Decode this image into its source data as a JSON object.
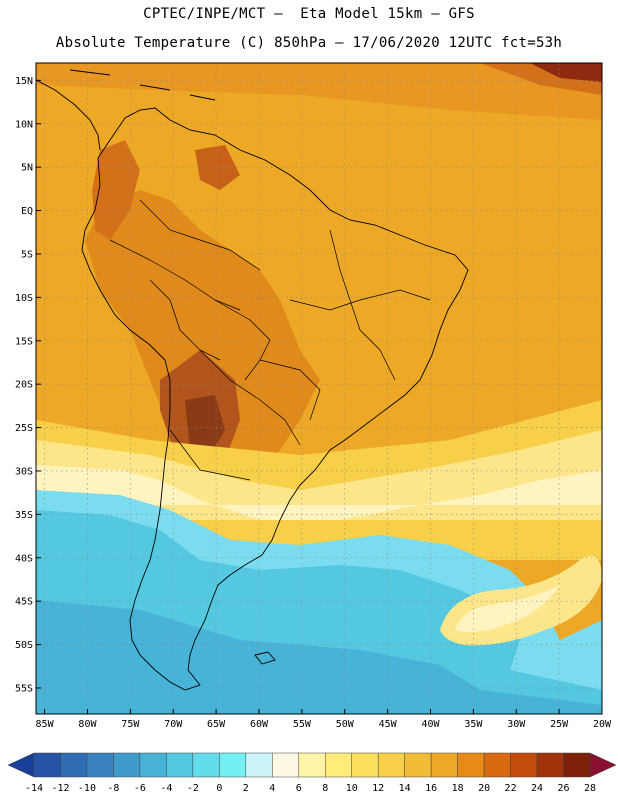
{
  "header": {
    "line1": "CPTEC/INPE/MCT –  Eta Model 15km – GFS",
    "line2": "Absolute Temperature (C) 850hPa – 17/06/2020 12UTC fct=53h"
  },
  "axes": {
    "lat_labels": [
      "15N",
      "10N",
      "5N",
      "EQ",
      "5S",
      "10S",
      "15S",
      "20S",
      "25S",
      "30S",
      "35S",
      "40S",
      "45S",
      "50S",
      "55S"
    ],
    "lat_values": [
      15,
      10,
      5,
      0,
      -5,
      -10,
      -15,
      -20,
      -25,
      -30,
      -35,
      -40,
      -45,
      -50,
      -55
    ],
    "lon_labels": [
      "85W",
      "80W",
      "75W",
      "70W",
      "65W",
      "60W",
      "55W",
      "50W",
      "45W",
      "40W",
      "35W",
      "30W",
      "25W",
      "20W"
    ],
    "lon_values": [
      -85,
      -80,
      -75,
      -70,
      -65,
      -60,
      -55,
      -50,
      -45,
      -40,
      -35,
      -30,
      -25,
      -20
    ],
    "lat_range": [
      -58,
      17
    ],
    "lon_range": [
      -86,
      -20
    ]
  },
  "colorbar": {
    "labels": [
      "-14",
      "-12",
      "-10",
      "-8",
      "-6",
      "-4",
      "-2",
      "0",
      "2",
      "4",
      "6",
      "8",
      "10",
      "12",
      "14",
      "16",
      "18",
      "20",
      "22",
      "24",
      "26",
      "28"
    ],
    "colors": [
      "#1a3f9a",
      "#2554a6",
      "#2f6db4",
      "#3a83c0",
      "#3f9bcc",
      "#47b3d6",
      "#54c8e0",
      "#63dcec",
      "#72f0f4",
      "#cdf4fa",
      "#fdf8e4",
      "#fff5a8",
      "#ffec7a",
      "#fde060",
      "#f7cf48",
      "#f2bb35",
      "#eda826",
      "#e88a18",
      "#d96a10",
      "#c24c0c",
      "#a23309",
      "#7e1f08",
      "#8a1030"
    ]
  },
  "map": {
    "colors": {
      "ocean_orange": "#eda826",
      "land_dark_orange": "#e08a1c",
      "hot_brown": "#b2551c",
      "cold_cyan": "#54c8e0",
      "light_cyan": "#7cdcef",
      "pale_cream": "#fff3bf",
      "light_yellow": "#fde68a",
      "border": "#000000",
      "grid": "#888888"
    }
  }
}
